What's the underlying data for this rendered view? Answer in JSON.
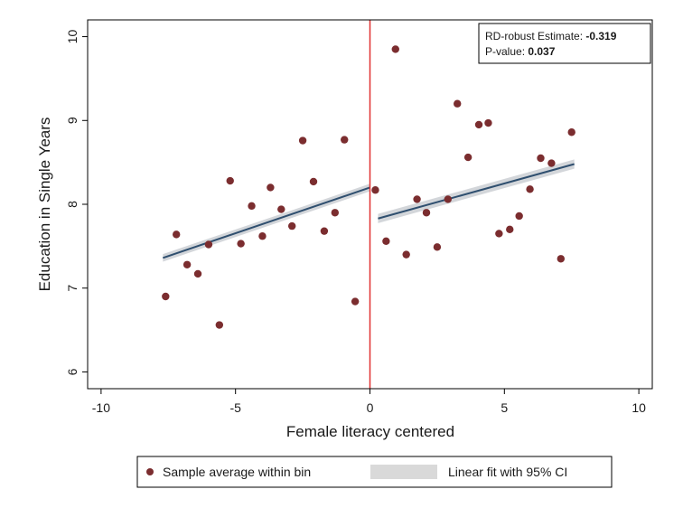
{
  "chart_data": {
    "type": "scatter",
    "title": "",
    "xlabel": "Female literacy centered",
    "ylabel": "Education in Single Years",
    "xlim": [
      -10.5,
      10.5
    ],
    "ylim": [
      5.8,
      10.2
    ],
    "x_ticks": [
      -10,
      -5,
      0,
      5,
      10
    ],
    "x_tick_labels": [
      "-10",
      "-5",
      "0",
      "5",
      "10"
    ],
    "y_ticks": [
      6,
      7,
      8,
      9,
      10
    ],
    "y_tick_labels": [
      "6",
      "7",
      "8",
      "9",
      "10"
    ],
    "grid": false,
    "cutoff": 0,
    "annotation": {
      "estimate_label": "RD-robust Estimate: ",
      "estimate_value": "-0.319",
      "pvalue_label": "P-value: ",
      "pvalue_value": "0.037"
    },
    "legend": {
      "position": "bottom",
      "items": [
        {
          "label": "Sample average within bin",
          "marker": "dot",
          "color": "#7b2d2f"
        },
        {
          "label": "Linear fit with 95% CI",
          "marker": "band",
          "color": "#d9d9d9"
        }
      ]
    },
    "colors": {
      "points": "#7b2d2f",
      "fit_line": "#2f4f6f",
      "ci_band": "#d3d6da",
      "cutoff_line": "#e03030"
    },
    "series": [
      {
        "name": "Sample average within bin",
        "points": [
          [
            -7.6,
            6.9
          ],
          [
            -7.2,
            7.64
          ],
          [
            -6.8,
            7.28
          ],
          [
            -6.4,
            7.17
          ],
          [
            -6.0,
            7.52
          ],
          [
            -5.6,
            6.56
          ],
          [
            -5.2,
            8.28
          ],
          [
            -4.8,
            7.53
          ],
          [
            -4.4,
            7.98
          ],
          [
            -4.0,
            7.62
          ],
          [
            -3.7,
            8.2
          ],
          [
            -3.3,
            7.94
          ],
          [
            -2.9,
            7.74
          ],
          [
            -2.5,
            8.76
          ],
          [
            -2.1,
            8.27
          ],
          [
            -1.7,
            7.68
          ],
          [
            -1.3,
            7.9
          ],
          [
            -0.95,
            8.77
          ],
          [
            -0.55,
            6.84
          ],
          [
            0.2,
            8.17
          ],
          [
            0.6,
            7.56
          ],
          [
            0.95,
            9.85
          ],
          [
            1.35,
            7.4
          ],
          [
            1.75,
            8.06
          ],
          [
            2.1,
            7.9
          ],
          [
            2.5,
            7.49
          ],
          [
            2.9,
            8.06
          ],
          [
            3.25,
            9.2
          ],
          [
            3.65,
            8.56
          ],
          [
            4.05,
            8.95
          ],
          [
            4.4,
            8.97
          ],
          [
            4.8,
            7.65
          ],
          [
            5.2,
            7.7
          ],
          [
            5.55,
            7.86
          ],
          [
            5.95,
            8.18
          ],
          [
            6.35,
            8.55
          ],
          [
            6.75,
            8.49
          ],
          [
            7.1,
            7.35
          ],
          [
            7.5,
            8.86
          ]
        ]
      }
    ],
    "fits": [
      {
        "x": [
          -7.7,
          0.0
        ],
        "y": [
          7.36,
          8.2
        ],
        "ci": 0.045
      },
      {
        "x": [
          0.3,
          7.6
        ],
        "y": [
          7.83,
          8.48
        ],
        "ci": 0.055
      }
    ]
  }
}
